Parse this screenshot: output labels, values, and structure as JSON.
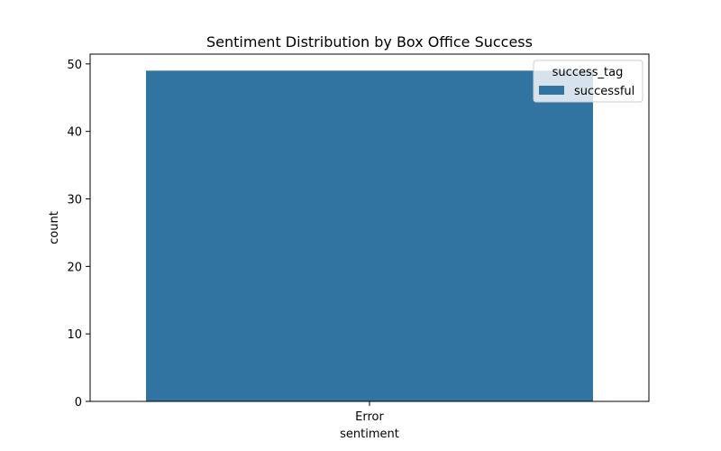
{
  "chart_data": {
    "type": "bar",
    "title": "Sentiment Distribution by Box Office Success",
    "xlabel": "sentiment",
    "ylabel": "count",
    "categories": [
      "Error"
    ],
    "series": [
      {
        "name": "successful",
        "values": [
          49
        ],
        "color": "#3274a1"
      }
    ],
    "ylim": [
      0,
      51.45
    ],
    "yticks": [
      0,
      10,
      20,
      30,
      40,
      50
    ],
    "grid": false,
    "legend": {
      "title": "success_tag",
      "placement": "top-right"
    }
  }
}
